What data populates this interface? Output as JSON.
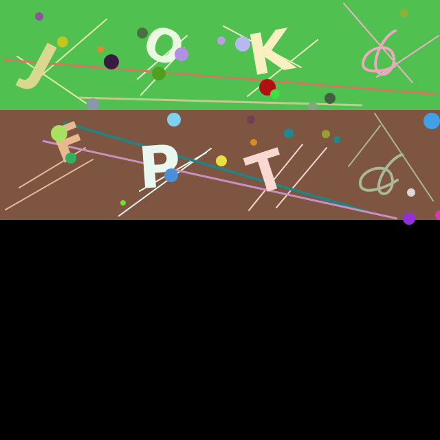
{
  "panels": [
    {
      "background": "#50c050",
      "glyphs": [
        {
          "char": "J",
          "color": "#d8d890"
        },
        {
          "char": "O",
          "color": "#eaf8e0"
        },
        {
          "char": "K",
          "color": "#f8f0c0"
        }
      ],
      "scribble_icon": "pink-loop-scribble",
      "scribble_color": "#f0a8c0"
    },
    {
      "background": "#7e5540",
      "glyphs": [
        {
          "char": "F",
          "color": "#e8b890"
        },
        {
          "char": "P",
          "color": "#e8f8f0"
        },
        {
          "char": "T",
          "color": "#f8d8d0"
        }
      ],
      "scribble_icon": "sage-loop-scribble",
      "scribble_color": "#a8b898"
    }
  ],
  "blank_area_color": "#000000"
}
